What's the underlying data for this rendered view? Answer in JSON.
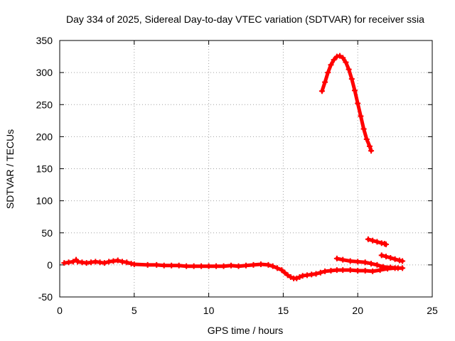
{
  "chart_data": {
    "type": "scatter",
    "title": "Day 334 of 2025, Sidereal Day-to-day VTEC variation (SDTVAR) for receiver ssia",
    "xlabel": "GPS time / hours",
    "ylabel": "SDTVAR / TECUs",
    "xlim": [
      0,
      25
    ],
    "ylim": [
      -50,
      350
    ],
    "xticks": [
      0,
      5,
      10,
      15,
      20,
      25
    ],
    "yticks": [
      -50,
      0,
      50,
      100,
      150,
      200,
      250,
      300,
      350
    ],
    "grid": true,
    "legend": "none",
    "marker": "plus",
    "color": "#ff0000",
    "series": [
      {
        "values": [
          [
            0.3,
            3
          ],
          [
            0.6,
            4
          ],
          [
            0.9,
            5
          ],
          [
            1.1,
            8
          ],
          [
            1.2,
            5
          ],
          [
            1.5,
            4
          ],
          [
            1.8,
            3
          ],
          [
            2.1,
            4
          ],
          [
            2.4,
            5
          ],
          [
            2.7,
            4
          ],
          [
            3.0,
            3
          ],
          [
            3.3,
            5
          ],
          [
            3.6,
            6
          ],
          [
            3.9,
            7
          ],
          [
            4.2,
            5
          ],
          [
            4.5,
            4
          ],
          [
            4.8,
            2
          ],
          [
            5.0,
            1
          ],
          [
            5.9,
            0
          ],
          [
            6.5,
            0
          ],
          [
            7.0,
            -1
          ],
          [
            7.5,
            -1
          ],
          [
            8.0,
            -1
          ],
          [
            8.5,
            -2
          ],
          [
            9.0,
            -2
          ],
          [
            9.5,
            -2
          ],
          [
            10.0,
            -2
          ],
          [
            10.5,
            -2
          ],
          [
            11.0,
            -2
          ],
          [
            11.5,
            -1
          ],
          [
            12.0,
            -2
          ],
          [
            12.5,
            -1
          ],
          [
            13.0,
            0
          ],
          [
            13.5,
            1
          ],
          [
            14.0,
            0
          ],
          [
            14.3,
            -2
          ],
          [
            14.6,
            -5
          ],
          [
            14.9,
            -8
          ],
          [
            15.1,
            -12
          ],
          [
            15.3,
            -16
          ],
          [
            15.5,
            -19
          ],
          [
            15.7,
            -21
          ],
          [
            15.9,
            -21
          ],
          [
            16.1,
            -19
          ],
          [
            16.3,
            -17
          ],
          [
            16.6,
            -16
          ],
          [
            16.9,
            -15
          ],
          [
            17.2,
            -14
          ],
          [
            17.5,
            -12
          ],
          [
            17.8,
            -10
          ],
          [
            18.2,
            -9
          ],
          [
            18.6,
            -8
          ],
          [
            19.0,
            -8
          ],
          [
            19.5,
            -8
          ],
          [
            20.0,
            -9
          ],
          [
            20.5,
            -9
          ],
          [
            21.0,
            -10
          ],
          [
            21.5,
            -8
          ],
          [
            22.0,
            -6
          ],
          [
            22.5,
            -5
          ],
          [
            23.0,
            -5
          ]
        ]
      },
      {
        "values": [
          [
            17.6,
            271
          ],
          [
            17.8,
            285
          ],
          [
            18.0,
            300
          ],
          [
            18.2,
            312
          ],
          [
            18.4,
            320
          ],
          [
            18.6,
            325
          ],
          [
            18.8,
            326
          ],
          [
            19.0,
            323
          ],
          [
            19.2,
            316
          ],
          [
            19.4,
            305
          ],
          [
            19.6,
            290
          ],
          [
            19.8,
            272
          ],
          [
            20.0,
            252
          ],
          [
            20.2,
            232
          ],
          [
            20.4,
            212
          ],
          [
            20.6,
            196
          ],
          [
            20.8,
            185
          ],
          [
            20.9,
            178
          ]
        ]
      },
      {
        "values": [
          [
            18.6,
            10
          ],
          [
            19.0,
            8
          ],
          [
            19.5,
            6
          ],
          [
            20.0,
            5
          ],
          [
            20.5,
            4
          ],
          [
            20.9,
            2
          ],
          [
            21.3,
            0
          ],
          [
            21.7,
            -3
          ],
          [
            22.2,
            -4
          ],
          [
            22.7,
            -5
          ]
        ]
      },
      {
        "values": [
          [
            20.7,
            40
          ],
          [
            21.0,
            38
          ],
          [
            21.3,
            36
          ],
          [
            21.6,
            34
          ],
          [
            21.8,
            33
          ],
          [
            21.9,
            32
          ]
        ]
      },
      {
        "values": [
          [
            21.6,
            15
          ],
          [
            21.9,
            13
          ],
          [
            22.2,
            11
          ],
          [
            22.5,
            9
          ],
          [
            22.8,
            7
          ],
          [
            23.0,
            6
          ]
        ]
      }
    ]
  }
}
